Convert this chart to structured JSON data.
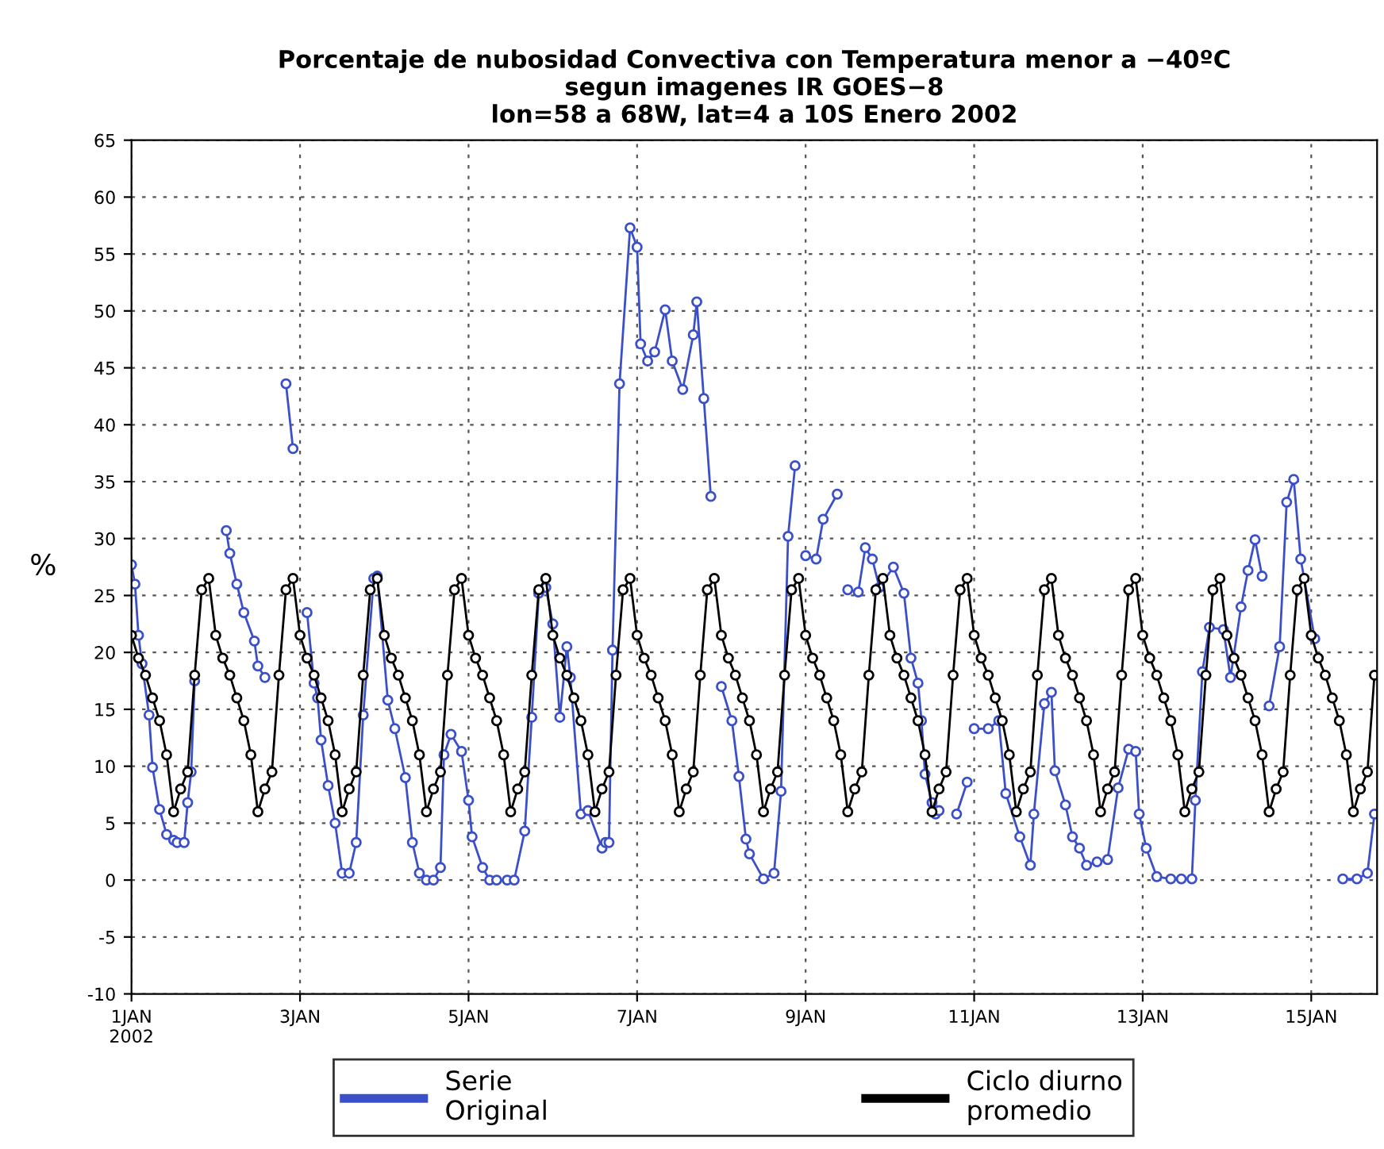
{
  "chart_data": {
    "type": "line",
    "title": "Porcentaje de nubosidad Convectiva con Temperatura menor a −40ºC\nsegun imagenes IR GOES−8\nlon=58 a 68W, lat=4 a 10S Enero 2002",
    "ylabel": "%",
    "xlim": [
      "2002-01-01T00:00",
      "2002-01-15T18:45"
    ],
    "xticks": [
      {
        "value": "2002-01-01",
        "label": "1JAN\n2002"
      },
      {
        "value": "2002-01-03",
        "label": "3JAN"
      },
      {
        "value": "2002-01-05",
        "label": "5JAN"
      },
      {
        "value": "2002-01-07",
        "label": "7JAN"
      },
      {
        "value": "2002-01-09",
        "label": "9JAN"
      },
      {
        "value": "2002-01-11",
        "label": "11JAN"
      },
      {
        "value": "2002-01-13",
        "label": "13JAN"
      },
      {
        "value": "2002-01-15",
        "label": "15JAN"
      }
    ],
    "ylim": [
      -10,
      65
    ],
    "yticks": [
      -10,
      -5,
      0,
      5,
      10,
      15,
      20,
      25,
      30,
      35,
      40,
      45,
      50,
      55,
      60,
      65
    ],
    "grid": true,
    "legend": "bottom",
    "marker": "circle",
    "line_style": "solid",
    "series": [
      {
        "name": "Serie\nOriginal",
        "color": "#3a4fc8",
        "x": [
          "2002-01-01T00:00",
          "2002-01-01T01:00",
          "2002-01-01T02:00",
          "2002-01-01T03:00",
          "2002-01-01T05:00",
          "2002-01-01T06:00",
          "2002-01-01T08:00",
          "2002-01-01T10:00",
          "2002-01-01T12:00",
          "2002-01-01T13:00",
          "2002-01-01T15:00",
          "2002-01-01T16:00",
          "2002-01-01T17:00",
          "2002-01-01T18:00",
          "2002-01-01T22:00",
          "2002-01-02T03:00",
          "2002-01-02T04:00",
          "2002-01-02T06:00",
          "2002-01-02T08:00",
          "2002-01-02T11:00",
          "2002-01-02T12:00",
          "2002-01-02T14:00",
          "2002-01-02T17:00",
          "2002-01-02T20:00",
          "2002-01-02T22:00",
          "2002-01-03T00:00",
          "2002-01-03T02:00",
          "2002-01-03T04:00",
          "2002-01-03T05:00",
          "2002-01-03T06:00",
          "2002-01-03T08:00",
          "2002-01-03T10:00",
          "2002-01-03T12:00",
          "2002-01-03T14:00",
          "2002-01-03T16:00",
          "2002-01-03T18:00",
          "2002-01-03T21:00",
          "2002-01-03T22:00",
          "2002-01-04T01:00",
          "2002-01-04T03:00",
          "2002-01-04T06:00",
          "2002-01-04T08:00",
          "2002-01-04T10:00",
          "2002-01-04T12:00",
          "2002-01-04T14:00",
          "2002-01-04T16:00",
          "2002-01-04T17:00",
          "2002-01-04T19:00",
          "2002-01-04T22:00",
          "2002-01-05T00:00",
          "2002-01-05T01:00",
          "2002-01-05T04:00",
          "2002-01-05T06:00",
          "2002-01-05T08:00",
          "2002-01-05T11:00",
          "2002-01-05T13:00",
          "2002-01-05T16:00",
          "2002-01-05T18:00",
          "2002-01-05T20:00",
          "2002-01-05T22:00",
          "2002-01-06T00:00",
          "2002-01-06T02:00",
          "2002-01-06T04:00",
          "2002-01-06T05:00",
          "2002-01-06T08:00",
          "2002-01-06T10:00",
          "2002-01-06T14:00",
          "2002-01-06T15:00",
          "2002-01-06T16:00",
          "2002-01-06T17:00",
          "2002-01-06T19:00",
          "2002-01-06T22:00",
          "2002-01-07T00:00",
          "2002-01-07T01:00",
          "2002-01-07T03:00",
          "2002-01-07T05:00",
          "2002-01-07T08:00",
          "2002-01-07T10:00",
          "2002-01-07T13:00",
          "2002-01-07T16:00",
          "2002-01-07T17:00",
          "2002-01-07T19:00",
          "2002-01-07T21:00",
          "2002-01-07T23:00",
          "2002-01-08T00:00",
          "2002-01-08T03:00",
          "2002-01-08T05:00",
          "2002-01-08T07:00",
          "2002-01-08T08:00",
          "2002-01-08T12:00",
          "2002-01-08T15:00",
          "2002-01-08T17:00",
          "2002-01-08T19:00",
          "2002-01-08T21:00",
          "2002-01-08T22:00",
          "2002-01-09T00:00",
          "2002-01-09T03:00",
          "2002-01-09T05:00",
          "2002-01-09T09:00",
          "2002-01-09T10:00",
          "2002-01-09T12:00",
          "2002-01-09T15:00",
          "2002-01-09T17:00",
          "2002-01-09T19:00",
          "2002-01-09T21:00",
          "2002-01-10T01:00",
          "2002-01-10T04:00",
          "2002-01-10T06:00",
          "2002-01-10T08:00",
          "2002-01-10T09:00",
          "2002-01-10T10:00",
          "2002-01-10T12:00",
          "2002-01-10T13:00",
          "2002-01-10T14:00",
          "2002-01-10T17:00",
          "2002-01-10T19:00",
          "2002-01-10T22:00",
          "2002-01-10T23:00",
          "2002-01-11T00:00",
          "2002-01-11T04:00",
          "2002-01-11T07:00",
          "2002-01-11T09:00",
          "2002-01-11T13:00",
          "2002-01-11T16:00",
          "2002-01-11T17:00",
          "2002-01-11T20:00",
          "2002-01-11T22:00",
          "2002-01-11T23:00",
          "2002-01-12T02:00",
          "2002-01-12T04:00",
          "2002-01-12T06:00",
          "2002-01-12T08:00",
          "2002-01-12T11:00",
          "2002-01-12T14:00",
          "2002-01-12T17:00",
          "2002-01-12T20:00",
          "2002-01-12T22:00",
          "2002-01-12T23:00",
          "2002-01-13T01:00",
          "2002-01-13T04:00",
          "2002-01-13T08:00",
          "2002-01-13T11:00",
          "2002-01-13T14:00",
          "2002-01-13T15:00",
          "2002-01-13T17:00",
          "2002-01-13T19:00",
          "2002-01-13T23:00",
          "2002-01-14T01:00",
          "2002-01-14T04:00",
          "2002-01-14T06:00",
          "2002-01-14T08:00",
          "2002-01-14T10:00",
          "2002-01-14T11:00",
          "2002-01-14T12:00",
          "2002-01-14T15:00",
          "2002-01-14T17:00",
          "2002-01-14T19:00",
          "2002-01-14T21:00",
          "2002-01-15T01:00",
          "2002-01-15T05:00",
          "2002-01-15T09:00",
          "2002-01-15T13:00",
          "2002-01-15T16:00",
          "2002-01-15T18:00"
        ],
        "values": [
          27.7,
          26,
          21.5,
          19,
          14.5,
          9.9,
          6.2,
          4,
          3.5,
          3.3,
          3.3,
          6.8,
          9.5,
          17.5,
          null,
          30.7,
          28.7,
          26,
          23.5,
          21,
          18.8,
          17.8,
          null,
          43.6,
          37.9,
          null,
          23.5,
          17.3,
          16,
          12.3,
          8.3,
          5,
          0.6,
          0.6,
          3.3,
          14.5,
          26.5,
          26.7,
          15.8,
          13.3,
          9,
          3.3,
          0.6,
          0,
          0,
          1.1,
          11,
          12.8,
          11.3,
          7,
          3.8,
          1.1,
          0,
          0,
          0,
          0,
          4.3,
          14.3,
          25.2,
          25.7,
          22.5,
          14.3,
          20.5,
          17.8,
          5.8,
          6.1,
          2.8,
          3.3,
          3.3,
          20.2,
          43.6,
          57.3,
          55.6,
          47.1,
          45.6,
          46.4,
          50.1,
          45.6,
          43.1,
          47.9,
          50.8,
          42.3,
          33.7,
          null,
          17,
          14,
          9.1,
          3.6,
          2.3,
          0.1,
          0.6,
          7.8,
          30.2,
          36.4,
          null,
          28.5,
          28.2,
          31.7,
          33.9,
          null,
          25.5,
          25.3,
          29.2,
          28.2,
          25.7,
          27.5,
          25.2,
          19.5,
          17.3,
          14,
          9.3,
          6.8,
          5.8,
          6.1,
          null,
          5.8,
          8.6,
          null,
          13.3,
          13.3,
          14,
          7.6,
          3.8,
          1.3,
          5.8,
          15.5,
          16.5,
          9.6,
          6.6,
          3.8,
          2.8,
          1.3,
          1.6,
          1.8,
          8.1,
          11.5,
          11.3,
          5.8,
          2.8,
          0.3,
          0.1,
          0.1,
          0.1,
          7,
          18.3,
          22.2,
          22,
          17.8,
          24,
          27.2,
          29.9,
          26.7,
          null,
          15.3,
          20.5,
          33.2,
          35.2,
          28.2,
          21.2,
          null,
          0.1,
          0.1,
          0.6,
          5.8
        ]
      },
      {
        "name": "Ciclo diurno\npromedio",
        "color": "#000000",
        "x": [
          "2002-01-01T00:00",
          "2002-01-01T02:00",
          "2002-01-01T04:00",
          "2002-01-01T06:00",
          "2002-01-01T08:00",
          "2002-01-01T10:00",
          "2002-01-01T12:00",
          "2002-01-01T14:00",
          "2002-01-01T16:00",
          "2002-01-01T18:00",
          "2002-01-01T20:00",
          "2002-01-01T22:00",
          "2002-01-02T00:00",
          "2002-01-02T02:00",
          "2002-01-02T04:00",
          "2002-01-02T06:00",
          "2002-01-02T08:00",
          "2002-01-02T10:00",
          "2002-01-02T12:00",
          "2002-01-02T14:00",
          "2002-01-02T16:00",
          "2002-01-02T18:00",
          "2002-01-02T20:00",
          "2002-01-02T22:00",
          "2002-01-03T00:00",
          "2002-01-03T02:00",
          "2002-01-03T04:00",
          "2002-01-03T06:00",
          "2002-01-03T08:00",
          "2002-01-03T10:00",
          "2002-01-03T12:00",
          "2002-01-03T14:00",
          "2002-01-03T16:00",
          "2002-01-03T18:00",
          "2002-01-03T20:00",
          "2002-01-03T22:00",
          "2002-01-04T00:00",
          "2002-01-04T02:00",
          "2002-01-04T04:00",
          "2002-01-04T06:00",
          "2002-01-04T08:00",
          "2002-01-04T10:00",
          "2002-01-04T12:00",
          "2002-01-04T14:00",
          "2002-01-04T16:00",
          "2002-01-04T18:00",
          "2002-01-04T20:00",
          "2002-01-04T22:00",
          "2002-01-05T00:00",
          "2002-01-05T02:00",
          "2002-01-05T04:00",
          "2002-01-05T06:00",
          "2002-01-05T08:00",
          "2002-01-05T10:00",
          "2002-01-05T12:00",
          "2002-01-05T14:00",
          "2002-01-05T16:00",
          "2002-01-05T18:00",
          "2002-01-05T20:00",
          "2002-01-05T22:00",
          "2002-01-06T00:00",
          "2002-01-06T02:00",
          "2002-01-06T04:00",
          "2002-01-06T06:00",
          "2002-01-06T08:00",
          "2002-01-06T10:00",
          "2002-01-06T12:00",
          "2002-01-06T14:00",
          "2002-01-06T16:00",
          "2002-01-06T18:00",
          "2002-01-06T20:00",
          "2002-01-06T22:00",
          "2002-01-07T00:00",
          "2002-01-07T02:00",
          "2002-01-07T04:00",
          "2002-01-07T06:00",
          "2002-01-07T08:00",
          "2002-01-07T10:00",
          "2002-01-07T12:00",
          "2002-01-07T14:00",
          "2002-01-07T16:00",
          "2002-01-07T18:00",
          "2002-01-07T20:00",
          "2002-01-07T22:00",
          "2002-01-08T00:00",
          "2002-01-08T02:00",
          "2002-01-08T04:00",
          "2002-01-08T06:00",
          "2002-01-08T08:00",
          "2002-01-08T10:00",
          "2002-01-08T12:00",
          "2002-01-08T14:00",
          "2002-01-08T16:00",
          "2002-01-08T18:00",
          "2002-01-08T20:00",
          "2002-01-08T22:00",
          "2002-01-09T00:00",
          "2002-01-09T02:00",
          "2002-01-09T04:00",
          "2002-01-09T06:00",
          "2002-01-09T08:00",
          "2002-01-09T10:00",
          "2002-01-09T12:00",
          "2002-01-09T14:00",
          "2002-01-09T16:00",
          "2002-01-09T18:00",
          "2002-01-09T20:00",
          "2002-01-09T22:00",
          "2002-01-10T00:00",
          "2002-01-10T02:00",
          "2002-01-10T04:00",
          "2002-01-10T06:00",
          "2002-01-10T08:00",
          "2002-01-10T10:00",
          "2002-01-10T12:00",
          "2002-01-10T14:00",
          "2002-01-10T16:00",
          "2002-01-10T18:00",
          "2002-01-10T20:00",
          "2002-01-10T22:00",
          "2002-01-11T00:00",
          "2002-01-11T02:00",
          "2002-01-11T04:00",
          "2002-01-11T06:00",
          "2002-01-11T08:00",
          "2002-01-11T10:00",
          "2002-01-11T12:00",
          "2002-01-11T14:00",
          "2002-01-11T16:00",
          "2002-01-11T18:00",
          "2002-01-11T20:00",
          "2002-01-11T22:00",
          "2002-01-12T00:00",
          "2002-01-12T02:00",
          "2002-01-12T04:00",
          "2002-01-12T06:00",
          "2002-01-12T08:00",
          "2002-01-12T10:00",
          "2002-01-12T12:00",
          "2002-01-12T14:00",
          "2002-01-12T16:00",
          "2002-01-12T18:00",
          "2002-01-12T20:00",
          "2002-01-12T22:00",
          "2002-01-13T00:00",
          "2002-01-13T02:00",
          "2002-01-13T04:00",
          "2002-01-13T06:00",
          "2002-01-13T08:00",
          "2002-01-13T10:00",
          "2002-01-13T12:00",
          "2002-01-13T14:00",
          "2002-01-13T16:00",
          "2002-01-13T18:00",
          "2002-01-13T20:00",
          "2002-01-13T22:00",
          "2002-01-14T00:00",
          "2002-01-14T02:00",
          "2002-01-14T04:00",
          "2002-01-14T06:00",
          "2002-01-14T08:00",
          "2002-01-14T10:00",
          "2002-01-14T12:00",
          "2002-01-14T14:00",
          "2002-01-14T16:00",
          "2002-01-14T18:00",
          "2002-01-14T20:00",
          "2002-01-14T22:00",
          "2002-01-15T00:00",
          "2002-01-15T02:00",
          "2002-01-15T04:00",
          "2002-01-15T06:00",
          "2002-01-15T08:00",
          "2002-01-15T10:00",
          "2002-01-15T12:00",
          "2002-01-15T14:00",
          "2002-01-15T16:00",
          "2002-01-15T18:00"
        ],
        "values": [
          21.5,
          19.5,
          18,
          16,
          14,
          11,
          6,
          8,
          9.5,
          18,
          25.5,
          26.5,
          21.5,
          19.5,
          18,
          16,
          14,
          11,
          6,
          8,
          9.5,
          18,
          25.5,
          26.5,
          21.5,
          19.5,
          18,
          16,
          14,
          11,
          6,
          8,
          9.5,
          18,
          25.5,
          26.5,
          21.5,
          19.5,
          18,
          16,
          14,
          11,
          6,
          8,
          9.5,
          18,
          25.5,
          26.5,
          21.5,
          19.5,
          18,
          16,
          14,
          11,
          6,
          8,
          9.5,
          18,
          25.5,
          26.5,
          21.5,
          19.5,
          18,
          16,
          14,
          11,
          6,
          8,
          9.5,
          18,
          25.5,
          26.5,
          21.5,
          19.5,
          18,
          16,
          14,
          11,
          6,
          8,
          9.5,
          18,
          25.5,
          26.5,
          21.5,
          19.5,
          18,
          16,
          14,
          11,
          6,
          8,
          9.5,
          18,
          25.5,
          26.5,
          21.5,
          19.5,
          18,
          16,
          14,
          11,
          6,
          8,
          9.5,
          18,
          25.5,
          26.5,
          21.5,
          19.5,
          18,
          16,
          14,
          11,
          6,
          8,
          9.5,
          18,
          25.5,
          26.5,
          21.5,
          19.5,
          18,
          16,
          14,
          11,
          6,
          8,
          9.5,
          18,
          25.5,
          26.5,
          21.5,
          19.5,
          18,
          16,
          14,
          11,
          6,
          8,
          9.5,
          18,
          25.5,
          26.5,
          21.5,
          19.5,
          18,
          16,
          14,
          11,
          6,
          8,
          9.5,
          18,
          25.5,
          26.5,
          21.5,
          19.5,
          18,
          16,
          14,
          11,
          6,
          8,
          9.5,
          18,
          25.5,
          26.5,
          21.5,
          19.5,
          18,
          16,
          14,
          11,
          6,
          8,
          9.5,
          18
        ]
      }
    ]
  }
}
